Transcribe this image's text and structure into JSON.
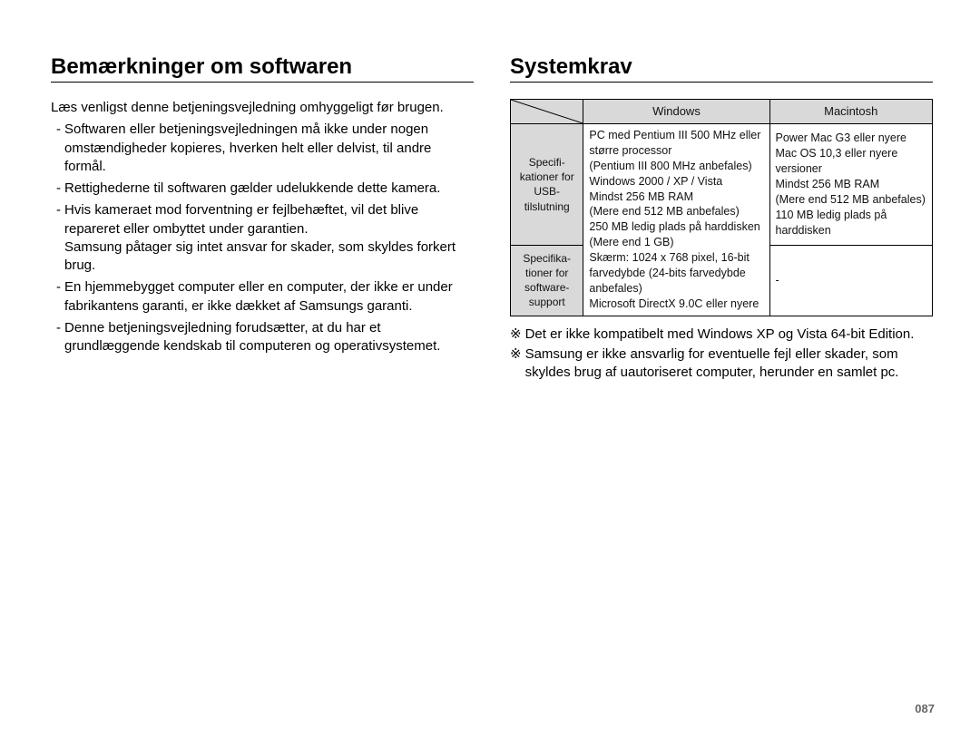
{
  "page": {
    "number": "087",
    "text_color": "#000000",
    "bg_color": "#ffffff",
    "header_bg": "#d9d9d9"
  },
  "left": {
    "title": "Bemærkninger om softwaren",
    "intro": "Læs venligst denne betjeningsvejledning omhyggeligt før brugen.",
    "bullets": [
      "Softwaren eller betjeningsvejledningen må ikke under nogen omstændigheder kopieres, hverken helt eller delvist, til andre formål.",
      "Rettighederne til softwaren gælder udelukkende dette kamera.",
      "Hvis kameraet mod forventning er fejlbehæftet, vil det blive repareret eller ombyttet under garantien.\nSamsung påtager sig intet ansvar for skader, som skyldes forkert brug.",
      "En hjemmebygget computer eller en computer, der ikke er under fabrikantens garanti, er ikke dækket af Samsungs garanti.",
      "Denne betjeningsvejledning forudsætter, at du har et grundlæggende kendskab til computeren og operativsystemet."
    ]
  },
  "right": {
    "title": "Systemkrav",
    "table": {
      "col_headers": [
        "Windows",
        "Macintosh"
      ],
      "rows": [
        {
          "label": "Specifi­kationer for USB-tilslutning",
          "win": "PC med Pentium III 500 MHz eller større processor\n(Pentium III 800 MHz anbefales)\nWindows 2000 / XP / Vista\nMindst 256 MB RAM\n(Mere end 512 MB anbefales)\n250 MB ledig plads på harddisken\n(Mere end 1 GB)",
          "mac": "Power Mac G3 eller nyere\nMac OS 10,3 eller nyere versioner\nMindst 256 MB RAM\n(Mere end 512 MB anbefales)\n110 MB ledig plads på harddisken",
          "win_rowspan": 1
        },
        {
          "label": "Specifika­tioner for software-support",
          "win": "Skærm: 1024 x 768 pixel, 16-bit farvedybde (24-bits farvedybde anbefales)\nMicrosoft DirectX 9.0C eller nyere",
          "mac": "-"
        }
      ]
    },
    "notes": [
      "Det er ikke kompatibelt med Windows XP og Vista 64-bit Edition.",
      "Samsung er ikke ansvarlig for eventuelle fejl eller skader, som skyldes brug af uautoriseret computer, herunder en samlet pc."
    ],
    "note_symbol": "※"
  }
}
